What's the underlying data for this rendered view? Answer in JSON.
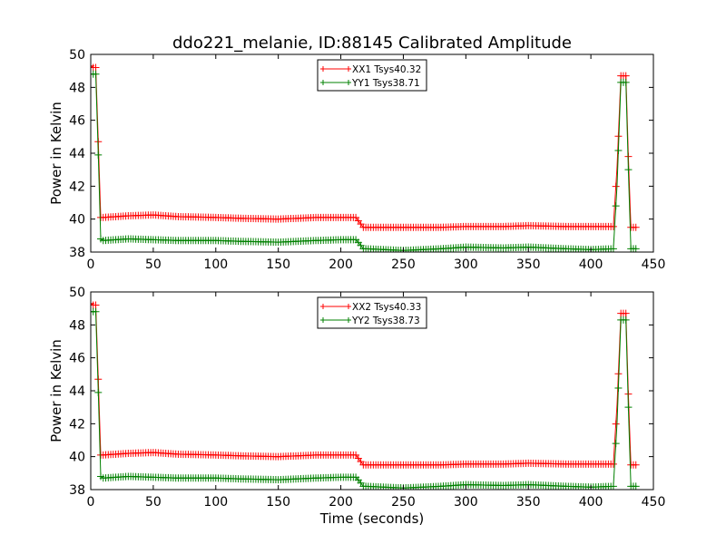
{
  "figure": {
    "title": "ddo221_melanie, ID:88145 Calibrated Amplitude"
  },
  "chart_data": [
    {
      "type": "line",
      "title": "ddo221_melanie, ID:88145 Calibrated Amplitude",
      "xlabel": "",
      "ylabel": "Power in Kelvin",
      "xlim": [
        0,
        450
      ],
      "ylim": [
        38,
        50
      ],
      "xticks": [
        0,
        50,
        100,
        150,
        200,
        250,
        300,
        350,
        400,
        450
      ],
      "yticks": [
        38,
        40,
        42,
        44,
        46,
        48,
        50
      ],
      "legend_position": "top-center",
      "marker": "plus",
      "series": [
        {
          "name": "XX1 Tsys40.32",
          "color": "#ff0000",
          "x": [
            0,
            2,
            4,
            6,
            8,
            10,
            30,
            50,
            70,
            100,
            120,
            150,
            180,
            200,
            212,
            215,
            218,
            220,
            250,
            280,
            300,
            330,
            350,
            380,
            400,
            418,
            421,
            424,
            426,
            428,
            430,
            432,
            434,
            436
          ],
          "y": [
            49.3,
            49.2,
            49.2,
            44.7,
            40.1,
            40.1,
            40.2,
            40.25,
            40.15,
            40.1,
            40.05,
            40.0,
            40.1,
            40.1,
            40.1,
            39.8,
            39.5,
            39.5,
            39.5,
            39.5,
            39.55,
            39.55,
            39.6,
            39.55,
            39.55,
            39.55,
            43.2,
            48.7,
            48.7,
            48.7,
            43.8,
            39.5,
            39.5,
            39.5
          ]
        },
        {
          "name": "YY1 Tsys38.71",
          "color": "#008000",
          "x": [
            0,
            2,
            4,
            6,
            8,
            10,
            30,
            50,
            70,
            100,
            120,
            150,
            180,
            200,
            212,
            215,
            218,
            220,
            250,
            280,
            300,
            330,
            350,
            380,
            400,
            418,
            421,
            424,
            426,
            428,
            430,
            432,
            434,
            436
          ],
          "y": [
            48.8,
            48.8,
            48.8,
            43.9,
            38.8,
            38.7,
            38.8,
            38.75,
            38.7,
            38.7,
            38.65,
            38.6,
            38.7,
            38.75,
            38.75,
            38.5,
            38.2,
            38.2,
            38.1,
            38.2,
            38.3,
            38.25,
            38.3,
            38.2,
            38.15,
            38.2,
            42.1,
            48.3,
            48.3,
            48.3,
            43.0,
            38.2,
            38.2,
            38.2
          ]
        }
      ]
    },
    {
      "type": "line",
      "title": "",
      "xlabel": "Time (seconds)",
      "ylabel": "Power in Kelvin",
      "xlim": [
        0,
        450
      ],
      "ylim": [
        38,
        50
      ],
      "xticks": [
        0,
        50,
        100,
        150,
        200,
        250,
        300,
        350,
        400,
        450
      ],
      "yticks": [
        38,
        40,
        42,
        44,
        46,
        48,
        50
      ],
      "legend_position": "top-center",
      "marker": "plus",
      "series": [
        {
          "name": "XX2 Tsys40.33",
          "color": "#ff0000",
          "x": [
            0,
            2,
            4,
            6,
            8,
            10,
            30,
            50,
            70,
            100,
            120,
            150,
            180,
            200,
            212,
            215,
            218,
            220,
            250,
            280,
            300,
            330,
            350,
            380,
            400,
            418,
            421,
            424,
            426,
            428,
            430,
            432,
            434,
            436
          ],
          "y": [
            49.3,
            49.2,
            49.2,
            44.7,
            40.1,
            40.1,
            40.2,
            40.25,
            40.15,
            40.1,
            40.05,
            40.0,
            40.1,
            40.1,
            40.1,
            39.8,
            39.5,
            39.5,
            39.5,
            39.5,
            39.55,
            39.55,
            39.6,
            39.55,
            39.55,
            39.55,
            43.2,
            48.7,
            48.7,
            48.7,
            43.8,
            39.5,
            39.5,
            39.5
          ]
        },
        {
          "name": "YY2 Tsys38.73",
          "color": "#008000",
          "x": [
            0,
            2,
            4,
            6,
            8,
            10,
            30,
            50,
            70,
            100,
            120,
            150,
            180,
            200,
            212,
            215,
            218,
            220,
            250,
            280,
            300,
            330,
            350,
            380,
            400,
            418,
            421,
            424,
            426,
            428,
            430,
            432,
            434,
            436
          ],
          "y": [
            48.8,
            48.8,
            48.8,
            43.9,
            38.8,
            38.7,
            38.8,
            38.75,
            38.7,
            38.7,
            38.65,
            38.6,
            38.7,
            38.75,
            38.75,
            38.5,
            38.2,
            38.2,
            38.1,
            38.2,
            38.3,
            38.25,
            38.3,
            38.2,
            38.15,
            38.2,
            42.1,
            48.3,
            48.3,
            48.3,
            43.0,
            38.2,
            38.2,
            38.2
          ]
        }
      ]
    }
  ]
}
